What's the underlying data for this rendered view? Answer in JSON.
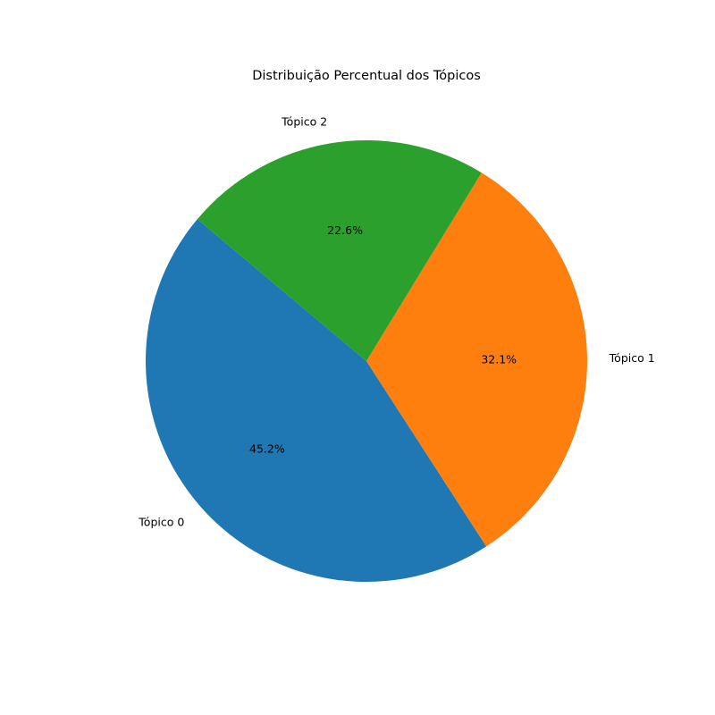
{
  "chart_data": {
    "type": "pie",
    "title": "Distribuição Percentual dos Tópicos",
    "slices": [
      {
        "label": "Tópico 0",
        "value": 45.2,
        "pct_label": "45.2%",
        "color": "#1f77b4"
      },
      {
        "label": "Tópico 1",
        "value": 32.1,
        "pct_label": "32.1%",
        "color": "#ff7f0e"
      },
      {
        "label": "Tópico 2",
        "value": 22.6,
        "pct_label": "22.6%",
        "color": "#2ca02c"
      }
    ],
    "start_angle_deg": 140,
    "direction": "counterclockwise"
  }
}
